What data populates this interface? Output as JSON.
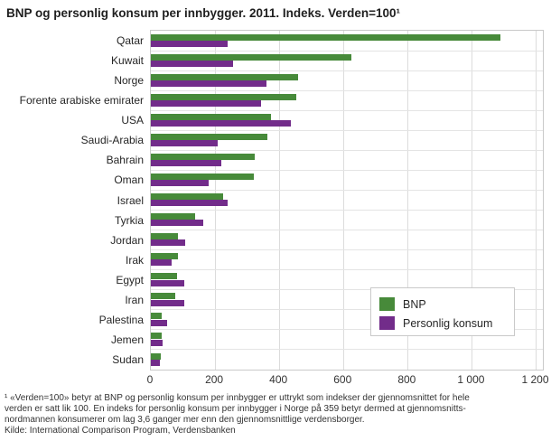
{
  "title": "BNP og personlig konsum per innbygger. 2011. Indeks. Verden=100¹",
  "legend": {
    "bnp_label": "BNP",
    "konsum_label": "Personlig konsum"
  },
  "colors": {
    "bnp": "#478a3a",
    "konsum": "#722c8a",
    "gridline": "#dcdcdc",
    "row_gridline": "#e4e4e4",
    "plot_border": "#c9c9c9"
  },
  "footnote_lines": [
    "¹ «Verden=100» betyr at BNP og personlig konsum per innbygger er uttrykt som indekser der gjennomsnittet for hele",
    "verden er satt lik 100. En indeks for personlig konsum per innbygger i Norge på 359 betyr dermed at gjennomsnitts-",
    "nordmannen konsumerer om lag 3,6 ganger mer enn den gjennomsnittlige verdensborger."
  ],
  "source": "Kilde: International Comparison Program, Verdensbanken",
  "chart_data": {
    "type": "bar",
    "orientation": "horizontal",
    "title": "BNP og personlig konsum per innbygger. 2011. Indeks. Verden=100",
    "categories": [
      "Qatar",
      "Kuwait",
      "Norge",
      "Forente arabiske emirater",
      "USA",
      "Saudi-Arabia",
      "Bahrain",
      "Oman",
      "Israel",
      "Tyrkia",
      "Jordan",
      "Irak",
      "Egypt",
      "Iran",
      "Palestina",
      "Jemen",
      "Sudan"
    ],
    "series": [
      {
        "name": "BNP",
        "color": "#478a3a",
        "values": [
          1090,
          625,
          460,
          452,
          373,
          362,
          324,
          320,
          226,
          137,
          85,
          85,
          82,
          76,
          33,
          33,
          31
        ]
      },
      {
        "name": "Personlig konsum",
        "color": "#722c8a",
        "values": [
          240,
          255,
          359,
          344,
          435,
          209,
          219,
          179,
          240,
          162,
          106,
          66,
          104,
          104,
          52,
          37,
          29
        ]
      }
    ],
    "xlim": [
      0,
      1200
    ],
    "xticks": [
      0,
      200,
      400,
      600,
      800,
      1000,
      1200
    ],
    "xtick_labels": [
      "0",
      "200",
      "400",
      "600",
      "800",
      "1 000",
      "1 200"
    ],
    "grid": true,
    "legend_position": "inside-lower-right"
  }
}
